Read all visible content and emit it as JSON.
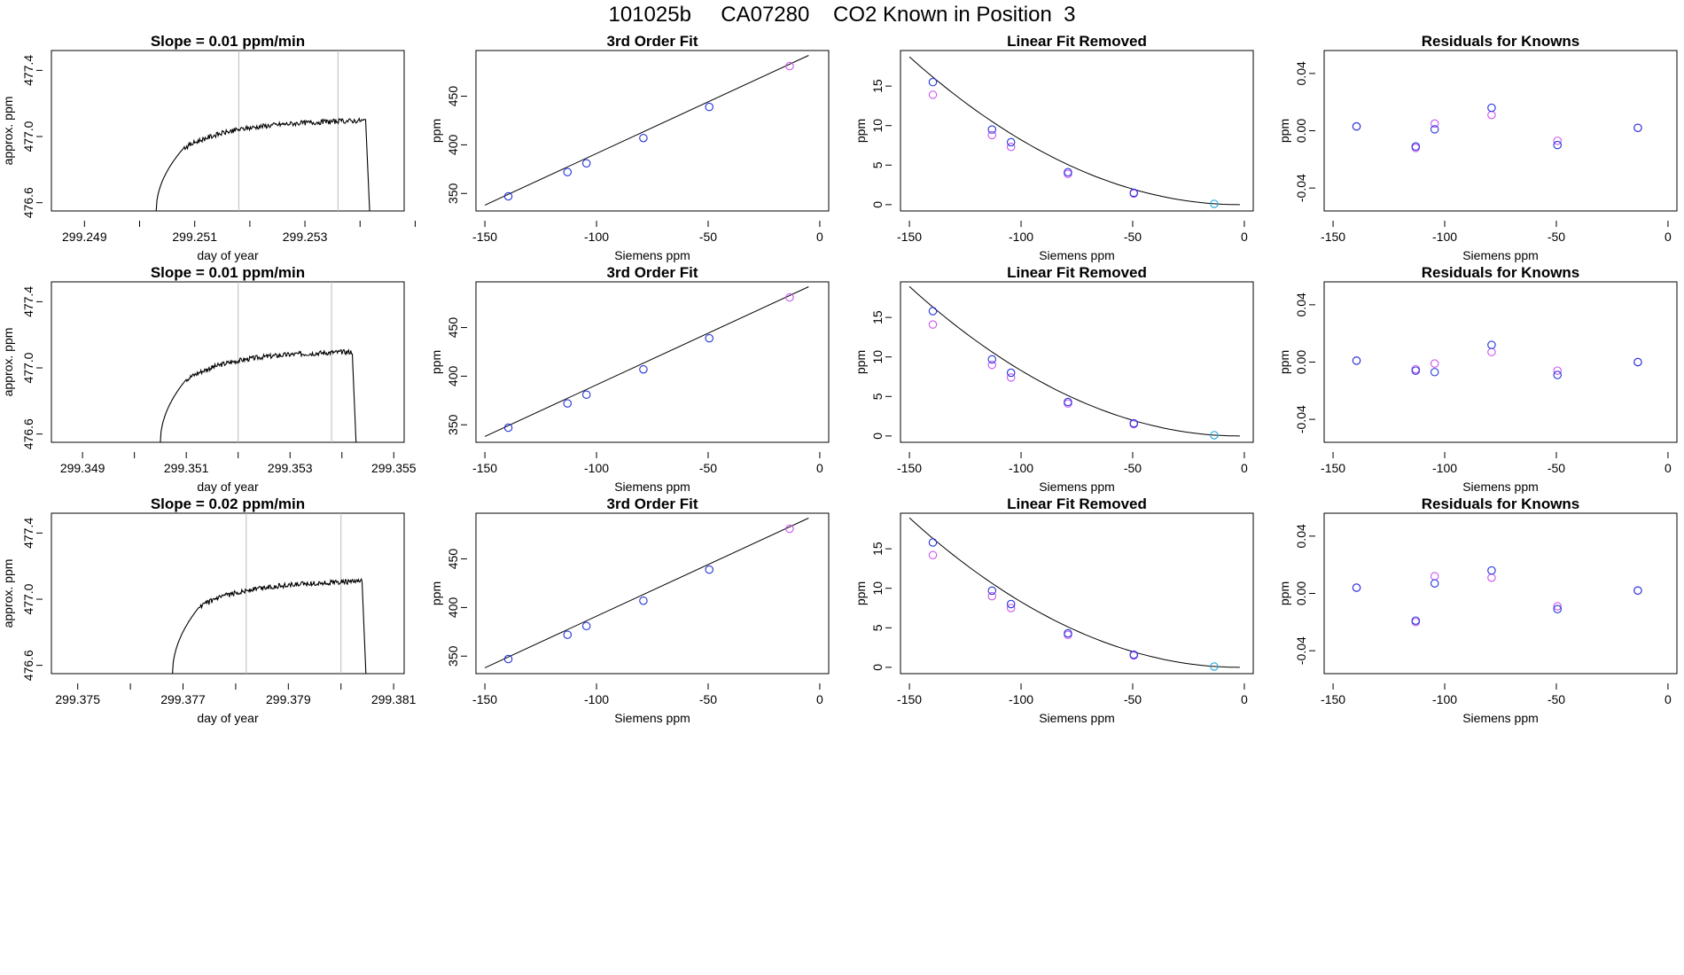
{
  "page": {
    "title": "101025b     CA07280    CO2 Known in Position  3"
  },
  "colors": {
    "known_blue": "#2233dd",
    "known_magenta": "#cc55ee",
    "reference_cyan": "#22aadd",
    "window_line": "#bbbbbb",
    "trace": "#000000"
  },
  "chart_data": [
    {
      "type": "line",
      "title": "Slope =  0.01  ppm/min",
      "xlabel": "day of year",
      "ylabel": "approx. ppm",
      "xlim": [
        299.2484,
        299.2548
      ],
      "ylim": [
        476.55,
        477.52
      ],
      "xticks": [
        299.249,
        299.25,
        299.251,
        299.252,
        299.253,
        299.254,
        299.255
      ],
      "xtick_labels": [
        "299.249",
        "",
        "299.251",
        "",
        "299.253",
        "",
        ""
      ],
      "yticks": [
        476.6,
        477.0,
        477.4
      ],
      "ytick_labels": [
        "476.6",
        "477.0",
        "477.4"
      ],
      "window_lines": [
        299.2518,
        299.2536
      ],
      "trace": {
        "start": 299.2503,
        "rise_end": 299.2508,
        "plateau_end": 299.2541,
        "drop_end": 299.2542,
        "y_start": 476.55,
        "y_mid": 476.93,
        "y_mid2": 477.02,
        "y_top": 477.08,
        "y_end": 477.1
      },
      "grid": false
    },
    {
      "type": "scatter",
      "title": "3rd Order Fit",
      "xlabel": "Siemens ppm",
      "ylabel": "ppm",
      "xlim": [
        -154,
        4
      ],
      "ylim": [
        332,
        497
      ],
      "xticks": [
        -150,
        -100,
        -50,
        0
      ],
      "xtick_labels": [
        "-150",
        "-100",
        "-50",
        "0"
      ],
      "yticks": [
        350,
        400,
        450
      ],
      "ytick_labels": [
        "350",
        "400",
        "450"
      ],
      "fit_line": {
        "x": [
          -150,
          -5
        ],
        "y": [
          338,
          492
        ]
      },
      "series": [
        {
          "color": "blue",
          "x": [
            -139.5,
            -113,
            -104.5,
            -79,
            -49.5
          ],
          "y": [
            347,
            372,
            381,
            407,
            439
          ]
        },
        {
          "color": "magenta",
          "x": [
            -13.5
          ],
          "y": [
            481
          ]
        }
      ],
      "grid": false
    },
    {
      "type": "scatter",
      "title": "Linear Fit Removed",
      "xlabel": "Siemens ppm",
      "ylabel": "ppm",
      "xlim": [
        -154,
        4
      ],
      "ylim": [
        -0.8,
        19.5
      ],
      "xticks": [
        -150,
        -100,
        -50,
        0
      ],
      "xtick_labels": [
        "-150",
        "-100",
        "-50",
        "0"
      ],
      "yticks": [
        0,
        5,
        10,
        15
      ],
      "ytick_labels": [
        "0",
        "5",
        "10",
        "15"
      ],
      "fit_curve": {
        "x0": -150,
        "x1": -2,
        "a": 18.7
      },
      "series": [
        {
          "color": "blue",
          "x": [
            -139.5,
            -113,
            -104.5,
            -79,
            -49.5
          ],
          "y": [
            15.5,
            9.5,
            7.9,
            4.1,
            1.5
          ]
        },
        {
          "color": "magenta",
          "x": [
            -139.5,
            -113,
            -104.5,
            -79,
            -49.5
          ],
          "y": [
            13.9,
            8.8,
            7.3,
            3.9,
            1.4
          ]
        },
        {
          "color": "cyan",
          "x": [
            -13.5
          ],
          "y": [
            0.1
          ]
        }
      ],
      "grid": false
    },
    {
      "type": "scatter",
      "title": "Residuals for Knowns",
      "xlabel": "Siemens ppm",
      "ylabel": "ppm",
      "xlim": [
        -154,
        4
      ],
      "ylim": [
        -0.056,
        0.056
      ],
      "xticks": [
        -150,
        -100,
        -50,
        0
      ],
      "xtick_labels": [
        "-150",
        "-100",
        "-50",
        "0"
      ],
      "yticks": [
        -0.04,
        0.0,
        0.04
      ],
      "ytick_labels": [
        "-0.04",
        "0.00",
        "0.04"
      ],
      "series": [
        {
          "color": "blue",
          "x": [
            -139.5,
            -113,
            -104.5,
            -79,
            -49.5,
            -13.5
          ],
          "y": [
            0.003,
            -0.011,
            0.001,
            0.016,
            -0.01,
            0.002
          ]
        },
        {
          "color": "magenta",
          "x": [
            -139.5,
            -113,
            -104.5,
            -79,
            -49.5,
            -13.5
          ],
          "y": [
            0.003,
            -0.012,
            0.005,
            0.011,
            -0.007,
            0.002
          ]
        }
      ],
      "grid": false
    },
    {
      "type": "line",
      "title": "Slope =  0.01  ppm/min",
      "xlabel": "day of year",
      "ylabel": "approx. ppm",
      "xlim": [
        299.3484,
        299.3552
      ],
      "ylim": [
        476.55,
        477.52
      ],
      "xticks": [
        299.349,
        299.35,
        299.351,
        299.352,
        299.353,
        299.354,
        299.355
      ],
      "xtick_labels": [
        "299.349",
        "",
        "299.351",
        "",
        "299.353",
        "",
        "299.355"
      ],
      "yticks": [
        476.6,
        477.0,
        477.4
      ],
      "ytick_labels": [
        "476.6",
        "477.0",
        "477.4"
      ],
      "window_lines": [
        299.352,
        299.3538
      ],
      "trace": {
        "start": 299.3505,
        "rise_end": 299.351,
        "plateau_end": 299.3542,
        "drop_end": 299.3543,
        "y_start": 476.55,
        "y_mid": 476.93,
        "y_mid2": 477.03,
        "y_top": 477.08,
        "y_end": 477.1
      },
      "grid": false
    },
    {
      "type": "scatter",
      "title": "3rd Order Fit",
      "xlabel": "Siemens ppm",
      "ylabel": "ppm",
      "xlim": [
        -154,
        4
      ],
      "ylim": [
        332,
        497
      ],
      "xticks": [
        -150,
        -100,
        -50,
        0
      ],
      "xtick_labels": [
        "-150",
        "-100",
        "-50",
        "0"
      ],
      "yticks": [
        350,
        400,
        450
      ],
      "ytick_labels": [
        "350",
        "400",
        "450"
      ],
      "fit_line": {
        "x": [
          -150,
          -5
        ],
        "y": [
          338,
          492
        ]
      },
      "series": [
        {
          "color": "blue",
          "x": [
            -139.5,
            -113,
            -104.5,
            -79,
            -49.5
          ],
          "y": [
            347,
            372,
            381,
            407,
            439
          ]
        },
        {
          "color": "magenta",
          "x": [
            -13.5
          ],
          "y": [
            481
          ]
        }
      ],
      "grid": false
    },
    {
      "type": "scatter",
      "title": "Linear Fit Removed",
      "xlabel": "Siemens ppm",
      "ylabel": "ppm",
      "xlim": [
        -154,
        4
      ],
      "ylim": [
        -0.8,
        19.5
      ],
      "xticks": [
        -150,
        -100,
        -50,
        0
      ],
      "xtick_labels": [
        "-150",
        "-100",
        "-50",
        "0"
      ],
      "yticks": [
        0,
        5,
        10,
        15
      ],
      "ytick_labels": [
        "0",
        "5",
        "10",
        "15"
      ],
      "fit_curve": {
        "x0": -150,
        "x1": -2,
        "a": 18.9
      },
      "series": [
        {
          "color": "blue",
          "x": [
            -139.5,
            -113,
            -104.5,
            -79,
            -49.5
          ],
          "y": [
            15.8,
            9.7,
            8.0,
            4.3,
            1.6
          ]
        },
        {
          "color": "magenta",
          "x": [
            -139.5,
            -113,
            -104.5,
            -79,
            -49.5
          ],
          "y": [
            14.1,
            9.0,
            7.4,
            4.1,
            1.5
          ]
        },
        {
          "color": "cyan",
          "x": [
            -13.5
          ],
          "y": [
            0.1
          ]
        }
      ],
      "grid": false
    },
    {
      "type": "scatter",
      "title": "Residuals for Knowns",
      "xlabel": "Siemens ppm",
      "ylabel": "ppm",
      "xlim": [
        -154,
        4
      ],
      "ylim": [
        -0.056,
        0.056
      ],
      "xticks": [
        -150,
        -100,
        -50,
        0
      ],
      "xtick_labels": [
        "-150",
        "-100",
        "-50",
        "0"
      ],
      "yticks": [
        -0.04,
        0.0,
        0.04
      ],
      "ytick_labels": [
        "-0.04",
        "0.00",
        "0.04"
      ],
      "series": [
        {
          "color": "blue",
          "x": [
            -139.5,
            -113,
            -104.5,
            -79,
            -49.5,
            -13.5
          ],
          "y": [
            0.001,
            -0.006,
            -0.007,
            0.012,
            -0.009,
            0.0
          ]
        },
        {
          "color": "magenta",
          "x": [
            -139.5,
            -113,
            -104.5,
            -79,
            -49.5,
            -13.5
          ],
          "y": [
            0.001,
            -0.005,
            -0.001,
            0.007,
            -0.006,
            0.0
          ]
        }
      ],
      "grid": false
    },
    {
      "type": "line",
      "title": "Slope =  0.02  ppm/min",
      "xlabel": "day of year",
      "ylabel": "approx. ppm",
      "xlim": [
        299.3745,
        299.3812
      ],
      "ylim": [
        476.55,
        477.52
      ],
      "xticks": [
        299.375,
        299.376,
        299.377,
        299.378,
        299.379,
        299.38,
        299.381
      ],
      "xtick_labels": [
        "299.375",
        "",
        "299.377",
        "",
        "299.379",
        "",
        "299.381"
      ],
      "yticks": [
        476.6,
        477.0,
        477.4
      ],
      "ytick_labels": [
        "476.6",
        "477.0",
        "477.4"
      ],
      "window_lines": [
        299.3782,
        299.38
      ],
      "trace": {
        "start": 299.3768,
        "rise_end": 299.3773,
        "plateau_end": 299.3804,
        "drop_end": 299.3805,
        "y_start": 476.55,
        "y_mid": 476.95,
        "y_mid2": 477.05,
        "y_top": 477.09,
        "y_end": 477.11
      },
      "grid": false
    },
    {
      "type": "scatter",
      "title": "3rd Order Fit",
      "xlabel": "Siemens ppm",
      "ylabel": "ppm",
      "xlim": [
        -154,
        4
      ],
      "ylim": [
        332,
        497
      ],
      "xticks": [
        -150,
        -100,
        -50,
        0
      ],
      "xtick_labels": [
        "-150",
        "-100",
        "-50",
        "0"
      ],
      "yticks": [
        350,
        400,
        450
      ],
      "ytick_labels": [
        "350",
        "400",
        "450"
      ],
      "fit_line": {
        "x": [
          -150,
          -5
        ],
        "y": [
          338,
          492
        ]
      },
      "series": [
        {
          "color": "blue",
          "x": [
            -139.5,
            -113,
            -104.5,
            -79,
            -49.5
          ],
          "y": [
            347,
            372,
            381,
            407,
            439
          ]
        },
        {
          "color": "magenta",
          "x": [
            -13.5
          ],
          "y": [
            481
          ]
        }
      ],
      "grid": false
    },
    {
      "type": "scatter",
      "title": "Linear Fit Removed",
      "xlabel": "Siemens ppm",
      "ylabel": "ppm",
      "xlim": [
        -154,
        4
      ],
      "ylim": [
        -0.8,
        19.5
      ],
      "xticks": [
        -150,
        -100,
        -50,
        0
      ],
      "xtick_labels": [
        "-150",
        "-100",
        "-50",
        "0"
      ],
      "yticks": [
        0,
        5,
        10,
        15
      ],
      "ytick_labels": [
        "0",
        "5",
        "10",
        "15"
      ],
      "fit_curve": {
        "x0": -150,
        "x1": -2,
        "a": 18.9
      },
      "series": [
        {
          "color": "blue",
          "x": [
            -139.5,
            -113,
            -104.5,
            -79,
            -49.5
          ],
          "y": [
            15.8,
            9.7,
            8.0,
            4.3,
            1.6
          ]
        },
        {
          "color": "magenta",
          "x": [
            -139.5,
            -113,
            -104.5,
            -79,
            -49.5
          ],
          "y": [
            14.2,
            9.0,
            7.5,
            4.1,
            1.5
          ]
        },
        {
          "color": "cyan",
          "x": [
            -13.5
          ],
          "y": [
            0.1
          ]
        }
      ],
      "grid": false
    },
    {
      "type": "scatter",
      "title": "Residuals for Knowns",
      "xlabel": "Siemens ppm",
      "ylabel": "ppm",
      "xlim": [
        -154,
        4
      ],
      "ylim": [
        -0.056,
        0.056
      ],
      "xticks": [
        -150,
        -100,
        -50,
        0
      ],
      "xtick_labels": [
        "-150",
        "-100",
        "-50",
        "0"
      ],
      "yticks": [
        -0.04,
        0.0,
        0.04
      ],
      "ytick_labels": [
        "-0.04",
        "0.00",
        "0.04"
      ],
      "series": [
        {
          "color": "blue",
          "x": [
            -139.5,
            -113,
            -104.5,
            -79,
            -49.5,
            -13.5
          ],
          "y": [
            0.004,
            -0.019,
            0.007,
            0.016,
            -0.011,
            0.002
          ]
        },
        {
          "color": "magenta",
          "x": [
            -139.5,
            -113,
            -104.5,
            -79,
            -49.5,
            -13.5
          ],
          "y": [
            0.004,
            -0.02,
            0.012,
            0.011,
            -0.009,
            0.002
          ]
        }
      ],
      "grid": false
    }
  ]
}
